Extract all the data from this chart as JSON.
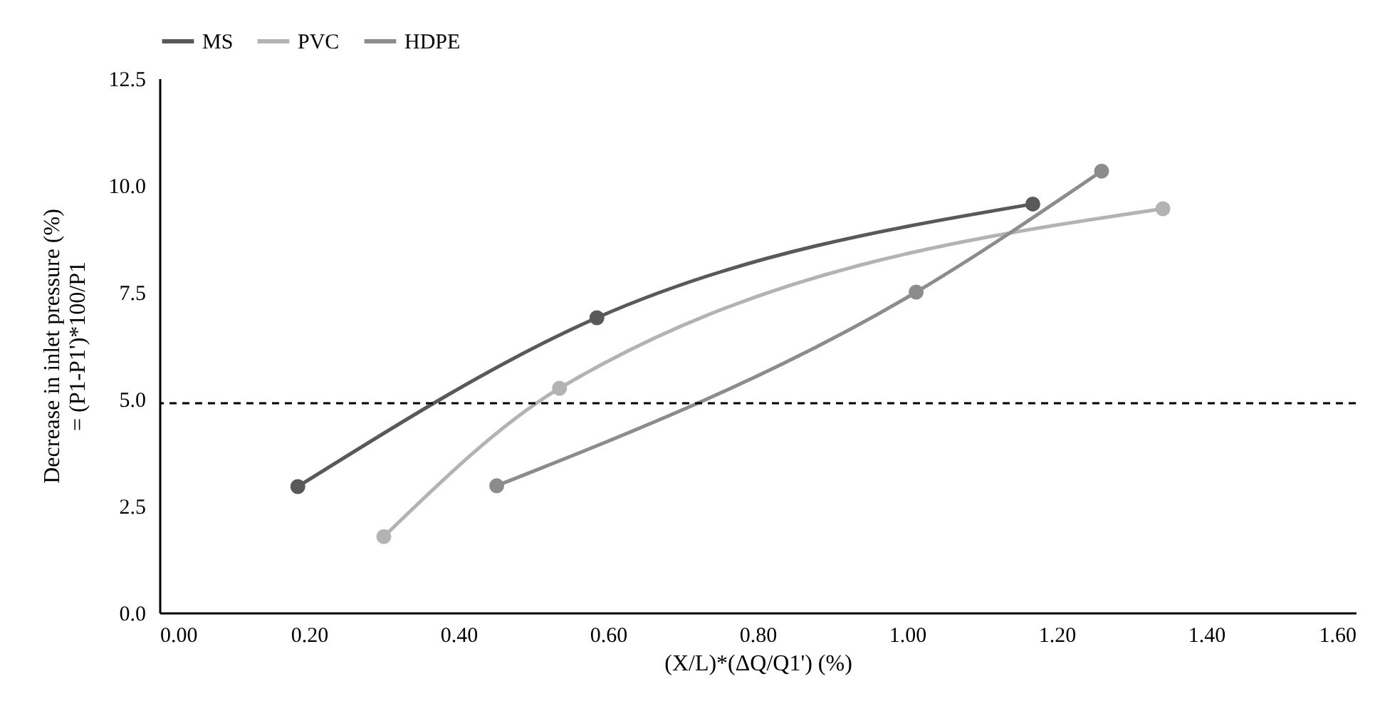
{
  "chart_data": {
    "type": "line",
    "xlabel": "(X/L)*(ΔQ/Q1') (%)",
    "ylabel": [
      "Decrease in inlet pressure (%)",
      "= (P1-P1')*100/P1"
    ],
    "series": [
      {
        "name": "MS",
        "color": "#595959",
        "x": [
          0.185,
          0.585,
          1.168
        ],
        "values": [
          2.95,
          6.9,
          9.56
        ]
      },
      {
        "name": "PVC",
        "color": "#b3b3b3",
        "x": [
          0.3,
          0.535,
          1.342
        ],
        "values": [
          1.78,
          5.25,
          9.45
        ]
      },
      {
        "name": "HDPE",
        "color": "#8c8c8c",
        "x": [
          0.451,
          1.012,
          1.26
        ],
        "values": [
          2.97,
          7.5,
          10.33
        ]
      }
    ],
    "xlim": [
      0,
      1.6
    ],
    "xticks": [
      {
        "value": 0,
        "label": "0.00"
      },
      {
        "value": 0.2,
        "label": "0.20"
      },
      {
        "value": 0.4,
        "label": "0.40"
      },
      {
        "value": 0.6,
        "label": "0.60"
      },
      {
        "value": 0.8,
        "label": "0.80"
      },
      {
        "value": 1,
        "label": "1.00"
      },
      {
        "value": 1.2,
        "label": "1.20"
      },
      {
        "value": 1.4,
        "label": "1.40"
      },
      {
        "value": 1.6,
        "label": "1.60"
      }
    ],
    "ylim": [
      0,
      12.5
    ],
    "yticks": [
      {
        "value": 0,
        "label": "0.0"
      },
      2.5,
      {
        "value": 5,
        "label": "5.0"
      },
      7.5,
      {
        "value": 10,
        "label": "10.0"
      },
      12.5
    ],
    "ref_lines": [
      {
        "axis": "y",
        "value": 4.9,
        "color": "#000000",
        "line_style": "dashed"
      }
    ],
    "grid": false,
    "legend": "top",
    "marker": "circle",
    "line_style": "solid"
  }
}
